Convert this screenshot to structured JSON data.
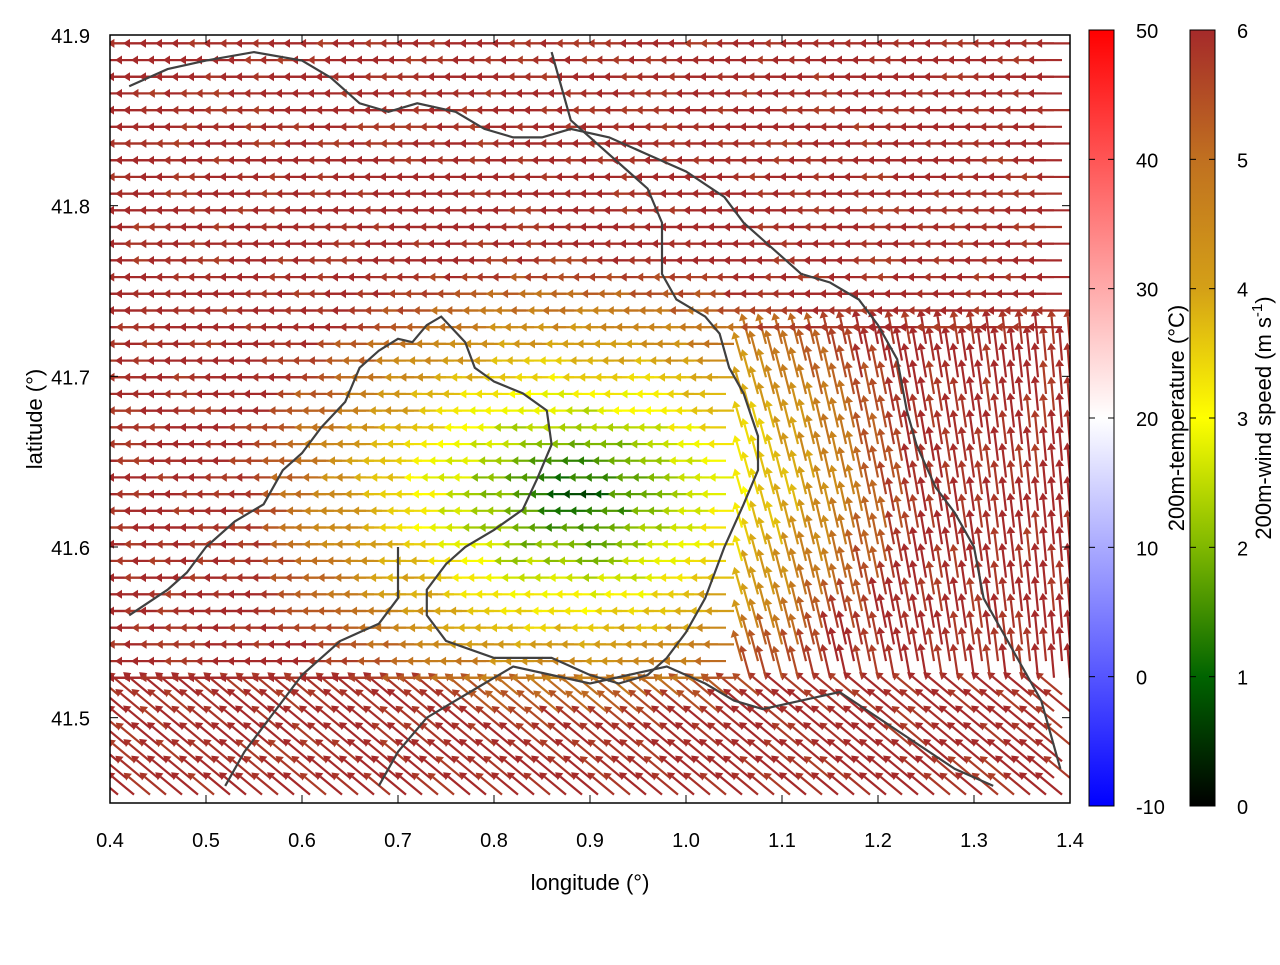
{
  "chart_data": {
    "type": "vector-field",
    "xlabel": "longitude (°)",
    "ylabel": "latitude (°)",
    "xlim": [
      0.4,
      1.4
    ],
    "ylim": [
      41.45,
      41.9
    ],
    "x_ticks": [
      "0.4",
      "0.5",
      "0.6",
      "0.7",
      "0.8",
      "0.9",
      "1.0",
      "1.1",
      "1.2",
      "1.3",
      "1.4"
    ],
    "y_ticks": [
      "41.5",
      "41.6",
      "41.7",
      "41.8",
      "41.9"
    ],
    "temperature_colorbar": {
      "label": "200m-temperature (°C)",
      "range": [
        -10,
        50
      ],
      "ticks": [
        "-10",
        "0",
        "10",
        "20",
        "30",
        "40",
        "50"
      ],
      "colors": [
        "#0000ff",
        "#ffffff",
        "#ff0000"
      ]
    },
    "windspeed_colorbar": {
      "label_main": "200m-wind speed (m s",
      "label_sup": "-1",
      "label_close": ")",
      "range": [
        0,
        6
      ],
      "ticks": [
        "0",
        "1",
        "2",
        "3",
        "4",
        "5",
        "6"
      ],
      "colors": [
        "#000000",
        "#006400",
        "#7fb800",
        "#ffff00",
        "#d4a017",
        "#c07020",
        "#a52a2a"
      ]
    },
    "background_temperature_c": 20,
    "arrow_color_saturated": "#a52a2a",
    "coastline_color": "#404040",
    "low_wind_center": {
      "lon": 0.9,
      "lat": 41.63
    },
    "coastline": [
      [
        [
          0.42,
          41.56
        ],
        [
          0.46,
          41.575
        ],
        [
          0.48,
          41.585
        ],
        [
          0.5,
          41.6
        ],
        [
          0.53,
          41.615
        ],
        [
          0.56,
          41.625
        ],
        [
          0.58,
          41.645
        ],
        [
          0.6,
          41.655
        ],
        [
          0.62,
          41.67
        ],
        [
          0.645,
          41.685
        ],
        [
          0.66,
          41.705
        ],
        [
          0.68,
          41.715
        ],
        [
          0.7,
          41.722
        ],
        [
          0.715,
          41.72
        ],
        [
          0.73,
          41.73
        ],
        [
          0.745,
          41.735
        ],
        [
          0.77,
          41.72
        ],
        [
          0.78,
          41.705
        ],
        [
          0.8,
          41.697
        ],
        [
          0.83,
          41.69
        ],
        [
          0.855,
          41.68
        ],
        [
          0.86,
          41.66
        ],
        [
          0.845,
          41.64
        ],
        [
          0.83,
          41.622
        ],
        [
          0.8,
          41.61
        ],
        [
          0.77,
          41.6
        ],
        [
          0.75,
          41.59
        ],
        [
          0.73,
          41.575
        ],
        [
          0.73,
          41.56
        ],
        [
          0.75,
          41.545
        ],
        [
          0.8,
          41.535
        ],
        [
          0.86,
          41.535
        ],
        [
          0.9,
          41.525
        ],
        [
          0.93,
          41.52
        ],
        [
          0.96,
          41.525
        ],
        [
          0.98,
          41.535
        ],
        [
          1.0,
          41.55
        ],
        [
          1.02,
          41.57
        ],
        [
          1.04,
          41.6
        ],
        [
          1.06,
          41.625
        ],
        [
          1.075,
          41.645
        ],
        [
          1.075,
          41.665
        ],
        [
          1.06,
          41.69
        ],
        [
          1.045,
          41.705
        ],
        [
          1.035,
          41.725
        ],
        [
          1.02,
          41.735
        ],
        [
          0.99,
          41.745
        ],
        [
          0.975,
          41.76
        ],
        [
          0.975,
          41.79
        ],
        [
          0.96,
          41.81
        ],
        [
          0.94,
          41.82
        ],
        [
          0.91,
          41.835
        ],
        [
          0.88,
          41.85
        ],
        [
          0.87,
          41.87
        ],
        [
          0.86,
          41.89
        ]
      ],
      [
        [
          0.42,
          41.87
        ],
        [
          0.46,
          41.88
        ],
        [
          0.5,
          41.885
        ],
        [
          0.55,
          41.89
        ],
        [
          0.6,
          41.885
        ],
        [
          0.63,
          41.875
        ],
        [
          0.66,
          41.86
        ],
        [
          0.69,
          41.855
        ],
        [
          0.72,
          41.86
        ],
        [
          0.76,
          41.855
        ],
        [
          0.79,
          41.845
        ],
        [
          0.82,
          41.84
        ],
        [
          0.85,
          41.84
        ],
        [
          0.88,
          41.845
        ],
        [
          0.92,
          41.84
        ],
        [
          0.96,
          41.83
        ],
        [
          1.0,
          41.82
        ],
        [
          1.04,
          41.805
        ],
        [
          1.06,
          41.79
        ],
        [
          1.09,
          41.775
        ],
        [
          1.12,
          41.76
        ],
        [
          1.15,
          41.755
        ],
        [
          1.18,
          41.745
        ],
        [
          1.2,
          41.73
        ],
        [
          1.22,
          41.71
        ],
        [
          1.23,
          41.68
        ],
        [
          1.24,
          41.66
        ],
        [
          1.26,
          41.635
        ],
        [
          1.28,
          41.62
        ],
        [
          1.3,
          41.6
        ],
        [
          1.31,
          41.57
        ],
        [
          1.33,
          41.55
        ],
        [
          1.35,
          41.53
        ],
        [
          1.37,
          41.51
        ],
        [
          1.38,
          41.49
        ],
        [
          1.39,
          41.47
        ]
      ],
      [
        [
          0.68,
          41.46
        ],
        [
          0.7,
          41.48
        ],
        [
          0.73,
          41.5
        ],
        [
          0.76,
          41.51
        ],
        [
          0.79,
          41.52
        ],
        [
          0.82,
          41.53
        ],
        [
          0.86,
          41.525
        ],
        [
          0.9,
          41.52
        ],
        [
          0.94,
          41.525
        ],
        [
          0.98,
          41.53
        ],
        [
          1.02,
          41.52
        ],
        [
          1.05,
          41.51
        ],
        [
          1.08,
          41.505
        ],
        [
          1.12,
          41.51
        ],
        [
          1.16,
          41.515
        ],
        [
          1.2,
          41.5
        ],
        [
          1.24,
          41.485
        ],
        [
          1.28,
          41.47
        ],
        [
          1.32,
          41.46
        ]
      ],
      [
        [
          0.52,
          41.46
        ],
        [
          0.54,
          41.48
        ],
        [
          0.56,
          41.495
        ],
        [
          0.58,
          41.51
        ],
        [
          0.6,
          41.525
        ],
        [
          0.62,
          41.535
        ],
        [
          0.64,
          41.545
        ],
        [
          0.66,
          41.55
        ],
        [
          0.68,
          41.555
        ],
        [
          0.7,
          41.57
        ],
        [
          0.7,
          41.6
        ]
      ]
    ]
  }
}
